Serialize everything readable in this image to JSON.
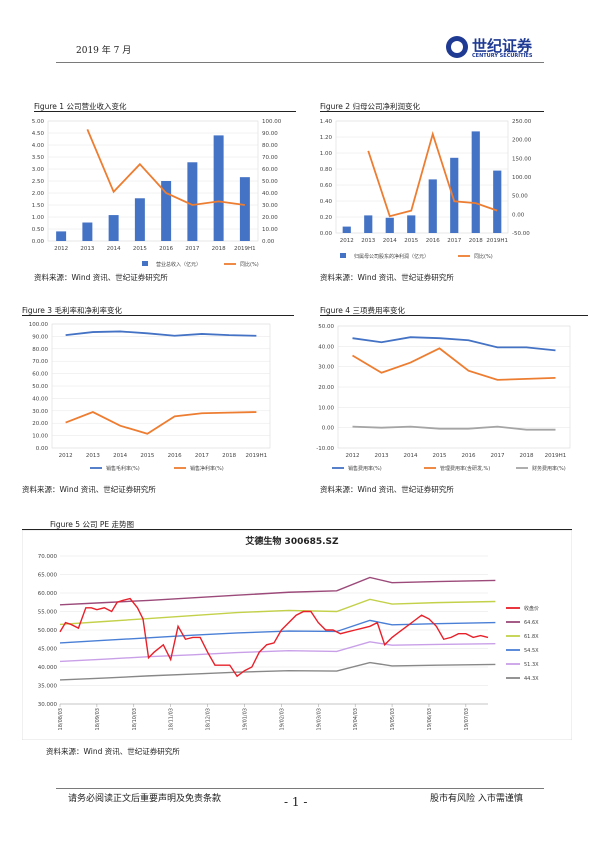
{
  "header": {
    "date": "2019 年 7 月",
    "logo_cn": "世纪证券",
    "logo_en": "CENTURY SECURITIES"
  },
  "source_note": "资料来源：Wind 资讯、世纪证券研究所",
  "footer": {
    "left": "请务必阅读正文后重要声明及免责条款",
    "page": "- 1 -",
    "right": "股市有风险 入市需谨慎"
  },
  "figures": {
    "f1": {
      "title": "Figure 1 公司营业收入变化"
    },
    "f2": {
      "title": "Figure 2 归母公司净利润变化"
    },
    "f3": {
      "title": "Figure 3 毛利率和净利率变化"
    },
    "f4": {
      "title": "Figure 4 三项费用率变化"
    },
    "f5": {
      "title": "Figure 5 公司 PE 走势图"
    }
  },
  "chart_data": [
    {
      "id": "f1",
      "type": "bar+line",
      "categories": [
        "2012",
        "2013",
        "2014",
        "2015",
        "2016",
        "2017",
        "2018",
        "2019H1"
      ],
      "left_ticks": [
        "0.00",
        "0.50",
        "1.00",
        "1.50",
        "2.00",
        "2.50",
        "3.00",
        "3.50",
        "4.00",
        "4.50",
        "5.00"
      ],
      "right_ticks": [
        "0.00",
        "10.00",
        "20.00",
        "30.00",
        "40.00",
        "50.00",
        "60.00",
        "70.00",
        "80.00",
        "90.00",
        "100.00"
      ],
      "ylim": [
        0,
        5
      ],
      "y2lim": [
        0,
        100
      ],
      "series": [
        {
          "name": "营业总收入（亿元）",
          "kind": "bar",
          "axis": "left",
          "values": [
            0.4,
            0.77,
            1.08,
            1.78,
            2.5,
            3.28,
            4.4,
            2.66
          ]
        },
        {
          "name": "同比(%)",
          "kind": "line",
          "axis": "right",
          "values": [
            null,
            93,
            41,
            64,
            40,
            30,
            33,
            30
          ]
        }
      ],
      "colors": {
        "bar": "#4472c4",
        "line": "#ed7d31"
      }
    },
    {
      "id": "f2",
      "type": "bar+line",
      "categories": [
        "2012",
        "2013",
        "2014",
        "2015",
        "2016",
        "2017",
        "2018",
        "2019H1"
      ],
      "left_ticks": [
        "0.00",
        "0.20",
        "0.40",
        "0.60",
        "0.80",
        "1.00",
        "1.20",
        "1.40"
      ],
      "right_ticks": [
        "-50.00",
        "0.00",
        "50.00",
        "100.00",
        "150.00",
        "200.00",
        "250.00"
      ],
      "ylim": [
        0,
        1.4
      ],
      "y2lim": [
        -50,
        250
      ],
      "series": [
        {
          "name": "归属母公司股东的净利润（亿元）",
          "kind": "bar",
          "axis": "left",
          "values": [
            0.08,
            0.22,
            0.19,
            0.22,
            0.67,
            0.94,
            1.27,
            0.78
          ]
        },
        {
          "name": "同比(%)",
          "kind": "line",
          "axis": "right",
          "values": [
            null,
            170,
            -5,
            10,
            215,
            35,
            30,
            10
          ]
        }
      ],
      "colors": {
        "bar": "#4472c4",
        "line": "#ed7d31"
      }
    },
    {
      "id": "f3",
      "type": "line",
      "categories": [
        "2012",
        "2013",
        "2014",
        "2015",
        "2016",
        "2017",
        "2018",
        "2019H1"
      ],
      "ticks": [
        "0.00",
        "10.00",
        "20.00",
        "30.00",
        "40.00",
        "50.00",
        "60.00",
        "70.00",
        "80.00",
        "90.00",
        "100.00"
      ],
      "ylim": [
        0,
        100
      ],
      "series": [
        {
          "name": "销售毛利率(%)",
          "values": [
            91,
            93.5,
            94,
            92.5,
            90.5,
            92,
            91,
            90.5
          ],
          "color": "#4472c4"
        },
        {
          "name": "销售净利率(%)",
          "values": [
            20.5,
            29,
            18,
            11.5,
            25.5,
            28,
            28.5,
            29
          ],
          "color": "#ed7d31"
        }
      ]
    },
    {
      "id": "f4",
      "type": "line",
      "categories": [
        "2012",
        "2013",
        "2014",
        "2015",
        "2016",
        "2017",
        "2018",
        "2019H1"
      ],
      "ticks": [
        "-10.00",
        "0.00",
        "10.00",
        "20.00",
        "30.00",
        "40.00",
        "50.00"
      ],
      "ylim": [
        -10,
        50
      ],
      "series": [
        {
          "name": "销售费用率(%)",
          "values": [
            44,
            42,
            44.5,
            44,
            43,
            39.5,
            39.5,
            38
          ],
          "color": "#4472c4"
        },
        {
          "name": "管理费用率(含研发,%)",
          "values": [
            35.5,
            27,
            32,
            39,
            28,
            23.5,
            24,
            24.5
          ],
          "color": "#ed7d31"
        },
        {
          "name": "财务费用率(%)",
          "values": [
            0.5,
            0,
            0.5,
            -0.5,
            -0.5,
            0.5,
            -1,
            -1
          ],
          "color": "#a5a5a5"
        }
      ]
    },
    {
      "id": "f5",
      "type": "line",
      "title": "艾德生物 300685.SZ",
      "x_ticks": [
        "18/08/03",
        "18/09/03",
        "18/10/03",
        "18/11/03",
        "18/12/03",
        "19/01/03",
        "19/02/03",
        "19/03/03",
        "19/04/03",
        "19/05/03",
        "19/06/03",
        "19/07/03"
      ],
      "y_ticks": [
        "30.000",
        "35.000",
        "40.000",
        "45.000",
        "50.000",
        "55.000",
        "60.000",
        "65.000",
        "70.000"
      ],
      "ylim": [
        30,
        70
      ],
      "band_series": [
        {
          "name": "64.6X",
          "values": [
            56.8,
            57.4,
            58.0,
            58.7,
            59.4,
            60.2,
            60.6,
            64.2,
            62.8,
            63.1,
            63.4
          ],
          "color": "#9b4a79"
        },
        {
          "name": "61.8X",
          "values": [
            51.5,
            52.3,
            53.1,
            53.9,
            54.7,
            55.3,
            55.0,
            58.3,
            57.0,
            57.4,
            57.7
          ],
          "color": "#c3d14a"
        },
        {
          "name": "54.5X",
          "values": [
            46.5,
            47.2,
            47.9,
            48.6,
            49.2,
            49.7,
            49.6,
            52.6,
            51.4,
            51.7,
            52.0
          ],
          "color": "#4a7fd6"
        },
        {
          "name": "51.3X",
          "values": [
            41.5,
            42.1,
            42.8,
            43.3,
            43.9,
            44.4,
            44.2,
            46.8,
            45.9,
            46.1,
            46.3
          ],
          "color": "#c9a0e8"
        },
        {
          "name": "44.3X",
          "values": [
            36.5,
            37.0,
            37.6,
            38.1,
            38.6,
            39.0,
            38.9,
            41.2,
            40.3,
            40.5,
            40.7
          ],
          "color": "#888888"
        }
      ],
      "band_x": [
        0,
        1.2,
        2.4,
        3.6,
        4.8,
        6.2,
        7.5,
        8.4,
        9.0,
        10.2,
        11.8
      ],
      "price_series": {
        "name": "收盘价",
        "color": "#e8202a",
        "x": [
          0,
          0.15,
          0.3,
          0.5,
          0.7,
          0.85,
          1.0,
          1.2,
          1.4,
          1.55,
          1.7,
          1.9,
          2.1,
          2.25,
          2.4,
          2.55,
          2.8,
          3.0,
          3.2,
          3.4,
          3.6,
          3.8,
          4.0,
          4.2,
          4.4,
          4.6,
          4.8,
          5.0,
          5.2,
          5.4,
          5.6,
          5.8,
          6.0,
          6.2,
          6.4,
          6.6,
          6.8,
          7.0,
          7.2,
          7.4,
          7.6,
          7.8,
          8.0,
          8.2,
          8.4,
          8.6,
          8.8,
          9.0,
          9.2,
          9.4,
          9.6,
          9.8,
          10.0,
          10.2,
          10.4,
          10.6,
          10.8,
          11.0,
          11.2,
          11.4,
          11.6
        ],
        "values": [
          49.5,
          52,
          51.5,
          50.5,
          56,
          56,
          55.5,
          56,
          55,
          57.5,
          58,
          58.5,
          56,
          53,
          42.5,
          44,
          46,
          42,
          51,
          47.5,
          48,
          48,
          44,
          40.5,
          40.5,
          40.5,
          37.5,
          39,
          40,
          44,
          46,
          46.5,
          50,
          52,
          54,
          55,
          55,
          52,
          50,
          50,
          49,
          49.5,
          50,
          50.5,
          51,
          52,
          46,
          48,
          49.5,
          51,
          52.5,
          54,
          53,
          51,
          47.5,
          48,
          49,
          49,
          48,
          48.5,
          48
        ]
      }
    }
  ]
}
